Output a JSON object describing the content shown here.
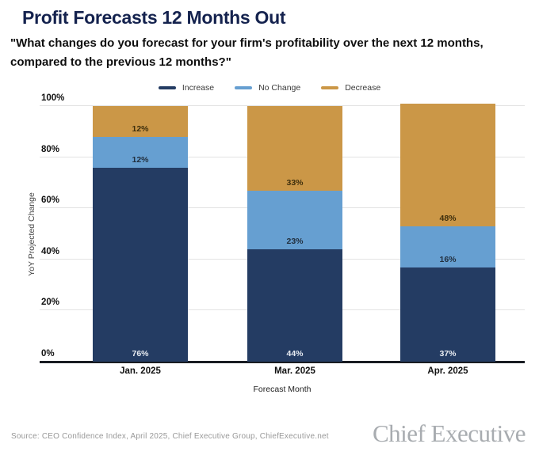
{
  "header": {
    "title": "Profit Forecasts 12 Months Out",
    "subtitle": "\"What changes do you forecast for your firm's profitability over the next 12 months, compared to the previous 12 months?\""
  },
  "chart_data": {
    "type": "bar",
    "stacked": true,
    "title": "Profit Forecasts 12 Months Out",
    "categories": [
      "Jan. 2025",
      "Mar. 2025",
      "Apr. 2025"
    ],
    "series": [
      {
        "name": "Increase",
        "color": "#243c63",
        "label_color": "#e8ecf2",
        "values": [
          76,
          44,
          37
        ]
      },
      {
        "name": "No Change",
        "color": "#669fd1",
        "label_color": "#22303f",
        "values": [
          12,
          23,
          16
        ]
      },
      {
        "name": "Decrease",
        "color": "#cb9747",
        "label_color": "#3e2f0d",
        "values": [
          12,
          33,
          48
        ]
      }
    ],
    "value_suffix": "%",
    "xlabel": "Forecast Month",
    "ylabel": "YoY Projected Change",
    "yticks": [
      "0%",
      "20%",
      "40%",
      "60%",
      "80%",
      "100%"
    ],
    "ylim": [
      0,
      100
    ],
    "grid": true,
    "legend_position": "top"
  },
  "footer": {
    "source": "Source: CEO Confidence Index, April 2025, Chief Executive Group, ChiefExecutive.net",
    "logo": "Chief Executive"
  }
}
